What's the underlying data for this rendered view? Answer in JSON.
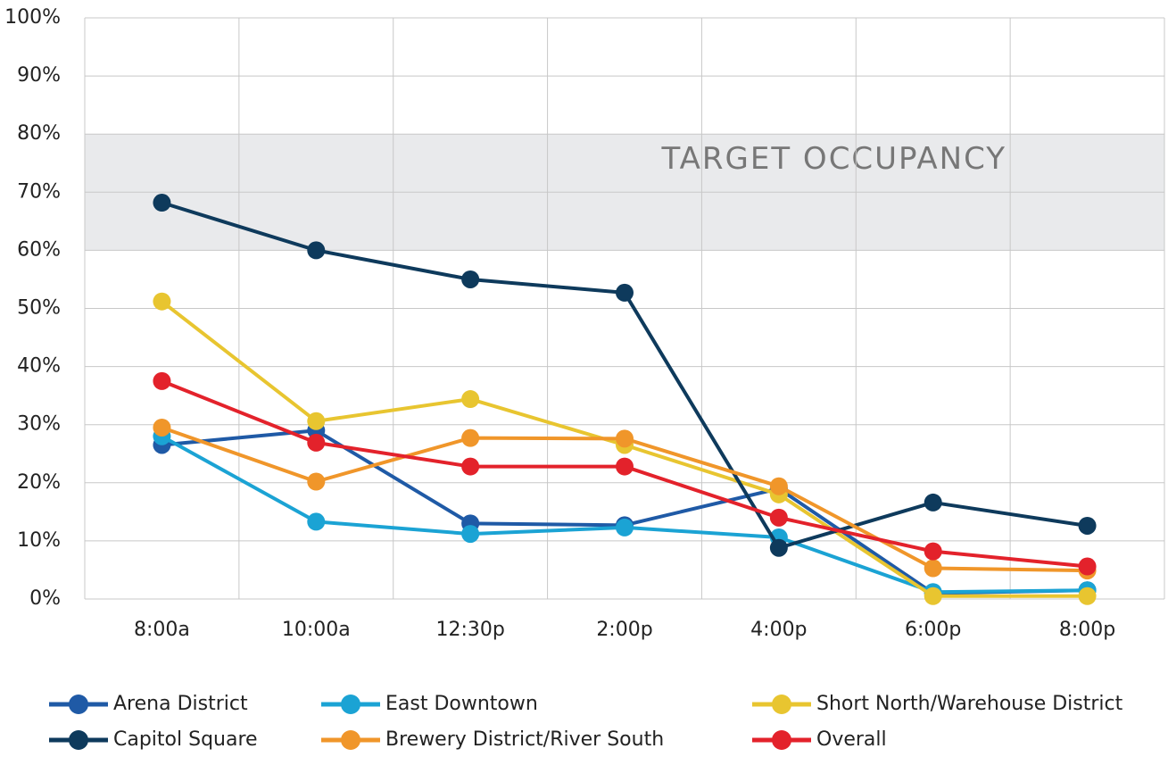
{
  "chart_data": {
    "type": "line",
    "categories": [
      "8:00a",
      "10:00a",
      "12:30p",
      "2:00p",
      "4:00p",
      "6:00p",
      "8:00p"
    ],
    "series": [
      {
        "name": "Arena District",
        "color": "#1f5aa6",
        "values": [
          26.5,
          29,
          13,
          12.7,
          19,
          1,
          1.5
        ]
      },
      {
        "name": "East Downtown",
        "color": "#1ba3d4",
        "values": [
          28,
          13.3,
          11.2,
          12.3,
          10.6,
          1.2,
          1.5
        ]
      },
      {
        "name": "Short North/Warehouse District",
        "color": "#e8c530",
        "values": [
          51.2,
          30.6,
          34.4,
          26.5,
          18,
          0.5,
          0.5
        ]
      },
      {
        "name": "Capitol Square",
        "color": "#0e3a5c",
        "values": [
          68.2,
          60,
          55,
          52.7,
          8.8,
          16.6,
          12.6
        ]
      },
      {
        "name": "Brewery District/River South",
        "color": "#f0962a",
        "values": [
          29.5,
          20.2,
          27.7,
          27.6,
          19.4,
          5.3,
          4.9
        ]
      },
      {
        "name": "Overall",
        "color": "#e3222b",
        "values": [
          37.5,
          26.9,
          22.8,
          22.8,
          14,
          8.2,
          5.6
        ]
      }
    ],
    "target_band": {
      "label": "TARGET OCCUPANCY",
      "range": [
        60,
        80
      ],
      "color": "#e9eaec"
    },
    "ylim": [
      0,
      100
    ],
    "yticks": [
      {
        "value": 0,
        "label": "0%"
      },
      {
        "value": 10,
        "label": "10%"
      },
      {
        "value": 20,
        "label": "20%"
      },
      {
        "value": 30,
        "label": "30%"
      },
      {
        "value": 40,
        "label": "40%"
      },
      {
        "value": 50,
        "label": "50%"
      },
      {
        "value": 60,
        "label": "60%"
      },
      {
        "value": 70,
        "label": "70%"
      },
      {
        "value": 80,
        "label": "80%"
      },
      {
        "value": 90,
        "label": "90%"
      },
      {
        "value": 100,
        "label": "100%"
      }
    ],
    "grid": true
  }
}
